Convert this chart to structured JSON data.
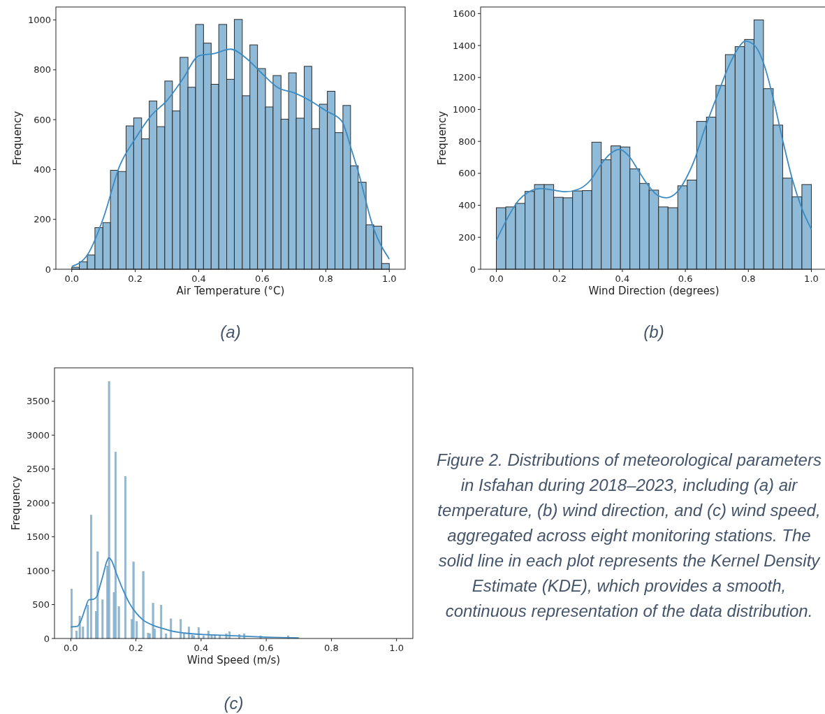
{
  "chart_data": [
    {
      "type": "histogram",
      "xlabel": "Air Temperature (°C)",
      "ylabel": "Frequency",
      "color": "#8fbbd9",
      "annotations": [
        "(a)"
      ],
      "bins": [
        0,
        0.024,
        0.049,
        0.073,
        0.098,
        0.122,
        0.146,
        0.171,
        0.195,
        0.22,
        0.244,
        0.268,
        0.293,
        0.317,
        0.341,
        0.366,
        0.39,
        0.415,
        0.439,
        0.463,
        0.488,
        0.512,
        0.537,
        0.561,
        0.585,
        0.61,
        0.634,
        0.659,
        0.683,
        0.707,
        0.732,
        0.756,
        0.78,
        0.805,
        0.829,
        0.854,
        0.878,
        0.902,
        0.927,
        0.951,
        0.976,
        1.0
      ],
      "values": [
        8,
        30,
        57,
        167,
        187,
        397,
        392,
        575,
        607,
        523,
        675,
        572,
        755,
        635,
        850,
        730,
        982,
        907,
        742,
        982,
        762,
        1002,
        696,
        900,
        805,
        651,
        777,
        602,
        788,
        606,
        814,
        564,
        662,
        714,
        548,
        657,
        415,
        349,
        178,
        173,
        23
      ],
      "series": [
        {
          "type": "line",
          "color": "#3b8bc2",
          "x": [
            0,
            0.05,
            0.1,
            0.15,
            0.2,
            0.25,
            0.3,
            0.35,
            0.4,
            0.45,
            0.5,
            0.55,
            0.6,
            0.65,
            0.7,
            0.75,
            0.8,
            0.85,
            0.88,
            0.9,
            0.95,
            1.0
          ],
          "values": [
            11,
            59,
            207,
            412,
            524,
            616,
            677,
            764,
            856,
            866,
            883,
            846,
            784,
            728,
            708,
            677,
            636,
            595,
            483,
            401,
            166,
            41
          ]
        }
      ],
      "xlim": [
        -0.05,
        1.05
      ],
      "ylim": [
        0,
        1052
      ],
      "xticks": [
        {
          "value": 0,
          "label": "0.0"
        },
        {
          "value": 0.2,
          "label": "0.2"
        },
        {
          "value": 0.4,
          "label": "0.4"
        },
        {
          "value": 0.6,
          "label": "0.6"
        },
        {
          "value": 0.8,
          "label": "0.8"
        },
        {
          "value": 1,
          "label": "1.0"
        }
      ],
      "yticks": [
        0,
        200,
        400,
        600,
        800,
        1000
      ]
    },
    {
      "type": "histogram",
      "xlabel": "Wind Direction (degrees)",
      "ylabel": "Frequency",
      "color": "#8fbbd9",
      "annotations": [
        "(b)"
      ],
      "bins": [
        0,
        0.03,
        0.061,
        0.091,
        0.121,
        0.152,
        0.182,
        0.212,
        0.242,
        0.273,
        0.303,
        0.333,
        0.364,
        0.394,
        0.424,
        0.455,
        0.485,
        0.515,
        0.545,
        0.576,
        0.606,
        0.636,
        0.667,
        0.697,
        0.727,
        0.758,
        0.788,
        0.818,
        0.848,
        0.879,
        0.909,
        0.939,
        0.97,
        1.0
      ],
      "values": [
        385,
        390,
        412,
        487,
        530,
        530,
        450,
        447,
        490,
        492,
        795,
        685,
        772,
        765,
        628,
        537,
        495,
        390,
        385,
        522,
        558,
        925,
        952,
        1150,
        1343,
        1393,
        1438,
        1560,
        1130,
        902,
        570,
        453,
        530
      ],
      "series": [
        {
          "type": "line",
          "color": "#3b8bc2",
          "x": [
            0,
            0.03,
            0.07,
            0.1,
            0.14,
            0.18,
            0.22,
            0.26,
            0.3,
            0.33,
            0.36,
            0.39,
            0.42,
            0.45,
            0.48,
            0.51,
            0.54,
            0.57,
            0.6,
            0.63,
            0.66,
            0.7,
            0.74,
            0.77,
            0.79,
            0.82,
            0.85,
            0.88,
            0.91,
            0.94,
            0.97,
            1.0
          ],
          "values": [
            180,
            300,
            430,
            480,
            505,
            495,
            485,
            500,
            560,
            650,
            720,
            750,
            710,
            620,
            530,
            465,
            447,
            475,
            560,
            690,
            870,
            1080,
            1280,
            1390,
            1428,
            1400,
            1280,
            1060,
            800,
            560,
            380,
            250
          ]
        }
      ],
      "xlim": [
        -0.05,
        1.05
      ],
      "ylim": [
        0,
        1641
      ],
      "xticks": [
        {
          "value": 0,
          "label": "0.0"
        },
        {
          "value": 0.2,
          "label": "0.2"
        },
        {
          "value": 0.4,
          "label": "0.4"
        },
        {
          "value": 0.6,
          "label": "0.6"
        },
        {
          "value": 0.8,
          "label": "0.8"
        },
        {
          "value": 1,
          "label": "1.0"
        }
      ],
      "yticks": [
        0,
        200,
        400,
        600,
        800,
        1000,
        1200,
        1400,
        1600
      ]
    },
    {
      "type": "histogram",
      "xlabel": "Wind Speed (m/s)",
      "ylabel": "Frequency",
      "color": "#8fbbd9",
      "annotations": [
        "(c)"
      ],
      "bins": [
        0,
        0.005,
        0.015,
        0.02,
        0.025,
        0.03,
        0.035,
        0.04,
        0.05,
        0.055,
        0.06,
        0.065,
        0.075,
        0.08,
        0.085,
        0.095,
        0.1,
        0.11,
        0.115,
        0.12,
        0.13,
        0.135,
        0.14,
        0.145,
        0.15,
        0.165,
        0.17,
        0.185,
        0.19,
        0.195,
        0.2,
        0.205,
        0.22,
        0.225,
        0.235,
        0.24,
        0.245,
        0.25,
        0.255,
        0.26,
        0.275,
        0.28,
        0.29,
        0.295,
        0.305,
        0.31,
        0.335,
        0.34,
        0.345,
        0.35,
        0.36,
        0.365,
        0.37,
        0.375,
        0.38,
        0.39,
        0.395,
        0.405,
        0.41,
        0.42,
        0.425,
        0.43,
        0.435,
        0.44,
        0.445,
        0.455,
        0.46,
        0.475,
        0.48,
        0.485,
        0.49,
        0.515,
        0.52,
        0.53,
        0.535,
        0.58,
        0.585,
        0.665,
        0.67
      ],
      "values": [
        730,
        0,
        110,
        0,
        330,
        0,
        170,
        0,
        490,
        0,
        1820,
        0,
        400,
        1280,
        0,
        570,
        0,
        1070,
        3790,
        0,
        680,
        2750,
        0,
        470,
        0,
        2390,
        0,
        280,
        1130,
        0,
        250,
        0,
        990,
        0,
        80,
        70,
        0,
        520,
        140,
        0,
        490,
        0,
        70,
        0,
        290,
        0,
        280,
        0,
        70,
        0,
        170,
        0,
        50,
        40,
        0,
        160,
        0,
        40,
        0,
        110,
        0,
        50,
        0,
        60,
        0,
        40,
        0,
        70,
        0,
        100,
        0,
        60,
        0,
        70,
        0,
        40,
        0,
        40
      ],
      "series": [
        {
          "type": "line",
          "color": "#3b8bc2",
          "x": [
            0,
            0.02,
            0.03,
            0.045,
            0.055,
            0.07,
            0.08,
            0.09,
            0.1,
            0.11,
            0.117,
            0.125,
            0.14,
            0.16,
            0.18,
            0.2,
            0.22,
            0.25,
            0.28,
            0.31,
            0.35,
            0.4,
            0.45,
            0.5,
            0.55,
            0.6,
            0.7
          ],
          "values": [
            170,
            180,
            250,
            450,
            570,
            580,
            620,
            780,
            950,
            1130,
            1190,
            1150,
            960,
            720,
            520,
            380,
            280,
            200,
            150,
            110,
            80,
            60,
            50,
            40,
            30,
            20,
            10
          ]
        }
      ],
      "xlim": [
        -0.05,
        1.05
      ],
      "ylim": [
        0,
        3993
      ],
      "xticks": [
        {
          "value": 0,
          "label": "0.0"
        },
        {
          "value": 0.2,
          "label": "0.2"
        },
        {
          "value": 0.4,
          "label": "0.4"
        },
        {
          "value": 0.6,
          "label": "0.6"
        },
        {
          "value": 0.8,
          "label": "0.8"
        },
        {
          "value": 1,
          "label": "1.0"
        }
      ],
      "yticks": [
        0,
        500,
        1000,
        1500,
        2000,
        2500,
        3000,
        3500
      ]
    },
    {
      "type": "other",
      "annotations": [
        "Figure 2. Distributions of meteorological parameters in Isfahan during 2018–2023, including (a) air temperature, (b) wind direction, and (c) wind speed, aggregated across eight monitoring stations. The solid line in each plot represents the Kernel Density Estimate (KDE), which provides a smooth, continuous representation of the data distribution."
      ]
    }
  ]
}
